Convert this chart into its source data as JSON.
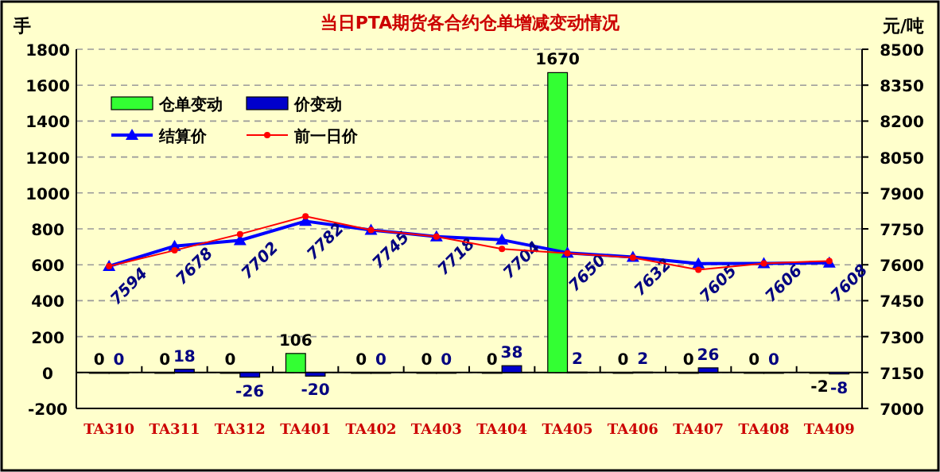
{
  "chart_data": {
    "type": "bar",
    "title": "当日PTA期货各合约仓单增减变动情况",
    "ylabel": "手",
    "y2label": "元/吨",
    "categories": [
      "TA310",
      "TA311",
      "TA312",
      "TA401",
      "TA402",
      "TA403",
      "TA404",
      "TA405",
      "TA406",
      "TA407",
      "TA408",
      "TA409"
    ],
    "series": [
      {
        "name": "仓单变动",
        "color": "#33ff33",
        "values": [
          0,
          0,
          0,
          106,
          0,
          0,
          0,
          1670,
          0,
          0,
          0,
          -2
        ],
        "value_labels": [
          "0",
          "0",
          "0",
          "106",
          "0",
          "0",
          "0",
          "1670",
          "0",
          "0",
          "0",
          "-2"
        ]
      },
      {
        "name": "价变动",
        "color": "#0000cc",
        "values": [
          0,
          18,
          -26,
          -20,
          0,
          0,
          38,
          2,
          2,
          26,
          0,
          -8
        ],
        "value_labels": [
          "0",
          "18",
          "-26",
          "-20",
          "0",
          "0",
          "38",
          "2",
          "2",
          "26",
          "0",
          "-8"
        ]
      },
      {
        "name": "结算价",
        "type": "line",
        "axis": "y2",
        "color": "#0000ff",
        "marker": "triangle",
        "values": [
          7594,
          7678,
          7702,
          7782,
          7745,
          7718,
          7704,
          7650,
          7632,
          7605,
          7606,
          7608
        ],
        "value_labels": [
          "7594",
          "7678",
          "7702",
          "7782",
          "7745",
          "7718",
          "7704",
          "7650",
          "7632",
          "7605",
          "7606",
          "7608"
        ]
      },
      {
        "name": "前一日价",
        "type": "line",
        "axis": "y2",
        "color": "#ff0000",
        "marker": "circle",
        "values": [
          7594,
          7660,
          7728,
          7802,
          7745,
          7718,
          7666,
          7648,
          7630,
          7579,
          7606,
          7616
        ]
      }
    ],
    "ylim": [
      -200,
      1800
    ],
    "yticks": [
      -200,
      0,
      200,
      400,
      600,
      800,
      1000,
      1200,
      1400,
      1600,
      1800
    ],
    "y2lim": [
      7000,
      8500
    ],
    "y2ticks": [
      7000,
      7150,
      7300,
      7450,
      7600,
      7750,
      7900,
      8050,
      8200,
      8350,
      8500
    ],
    "grid": "y",
    "legend": "top left"
  }
}
